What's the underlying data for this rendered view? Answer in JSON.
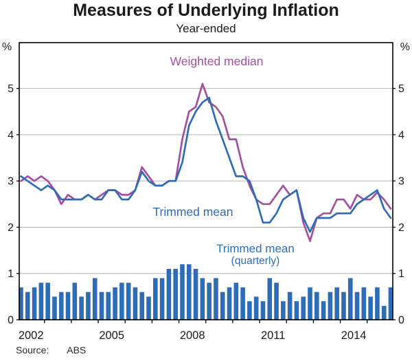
{
  "header": {
    "title": "Measures of Underlying Inflation",
    "subtitle": "Year-ended"
  },
  "axes": {
    "left_unit": "%",
    "right_unit": "%",
    "x_labels": [
      "2002",
      "2005",
      "2008",
      "2011",
      "2014"
    ]
  },
  "labels": {
    "weighted_median": "Weighted median",
    "trimmed_mean": "Trimmed mean",
    "trimmed_mean_quarterly_line1": "Trimmed mean",
    "trimmed_mean_quarterly_line2": "(quarterly)"
  },
  "footer": {
    "source_label": "Source:",
    "source_value": "ABS"
  },
  "colors": {
    "trimmed_mean_blue": "#2e6db5",
    "weighted_median_purple": "#a3509e",
    "grid": "#b3b3b3",
    "axis": "#000000",
    "text": "#1a1a1a"
  },
  "chart_data": {
    "type": "mixed",
    "frequency": "quarterly",
    "period_start": "2002 Q1",
    "period_end": "2015 Q4",
    "title": "Measures of Underlying Inflation",
    "subtitle": "Year-ended",
    "ylabel": "%",
    "ylim": [
      0,
      5.99
    ],
    "y_ticks": [
      0,
      1,
      2,
      3,
      4,
      5
    ],
    "x_tick_labels": [
      "2002",
      "2005",
      "2008",
      "2011",
      "2014"
    ],
    "grid": true,
    "series": [
      {
        "name": "Trimmed mean (quarterly)",
        "type": "bar",
        "color": "#2e6db5",
        "values": [
          0.7,
          0.6,
          0.7,
          0.8,
          0.8,
          0.5,
          0.6,
          0.6,
          0.8,
          0.5,
          0.6,
          0.9,
          0.6,
          0.6,
          0.7,
          0.8,
          0.8,
          0.7,
          0.6,
          0.5,
          0.9,
          0.9,
          1.1,
          1.1,
          1.2,
          1.2,
          1.1,
          0.9,
          0.8,
          0.9,
          0.6,
          0.7,
          0.8,
          0.7,
          0.4,
          0.5,
          0.4,
          0.9,
          0.8,
          0.4,
          0.6,
          0.4,
          0.5,
          0.7,
          0.6,
          0.4,
          0.6,
          0.7,
          0.6,
          0.9,
          0.6,
          0.7,
          0.5,
          0.7,
          0.3,
          0.7
        ]
      },
      {
        "name": "Weighted median",
        "type": "line",
        "color": "#a3509e",
        "values": [
          3.0,
          3.1,
          3.0,
          3.1,
          3.0,
          2.8,
          2.5,
          2.7,
          2.6,
          2.6,
          2.7,
          2.6,
          2.7,
          2.8,
          2.8,
          2.7,
          2.7,
          2.8,
          3.3,
          3.1,
          2.9,
          2.9,
          3.0,
          3.0,
          3.9,
          4.5,
          4.6,
          5.1,
          4.7,
          4.6,
          4.4,
          3.9,
          3.9,
          3.3,
          2.9,
          2.6,
          2.5,
          2.5,
          2.7,
          2.9,
          2.7,
          2.8,
          2.1,
          1.7,
          2.2,
          2.3,
          2.3,
          2.6,
          2.6,
          2.4,
          2.7,
          2.6,
          2.6,
          2.75,
          2.6,
          2.4
        ]
      },
      {
        "name": "Trimmed mean",
        "type": "line",
        "color": "#2e6db5",
        "values": [
          3.1,
          3.0,
          2.9,
          2.8,
          2.9,
          2.8,
          2.6,
          2.6,
          2.6,
          2.6,
          2.7,
          2.6,
          2.6,
          2.8,
          2.8,
          2.6,
          2.6,
          2.8,
          3.2,
          3.0,
          2.9,
          2.9,
          3.0,
          3.0,
          3.4,
          4.2,
          4.5,
          4.7,
          4.8,
          4.3,
          3.9,
          3.5,
          3.1,
          3.1,
          3.0,
          2.6,
          2.1,
          2.1,
          2.3,
          2.6,
          2.7,
          2.8,
          2.2,
          1.9,
          2.2,
          2.2,
          2.2,
          2.3,
          2.3,
          2.3,
          2.5,
          2.6,
          2.7,
          2.8,
          2.4,
          2.2
        ]
      }
    ]
  }
}
